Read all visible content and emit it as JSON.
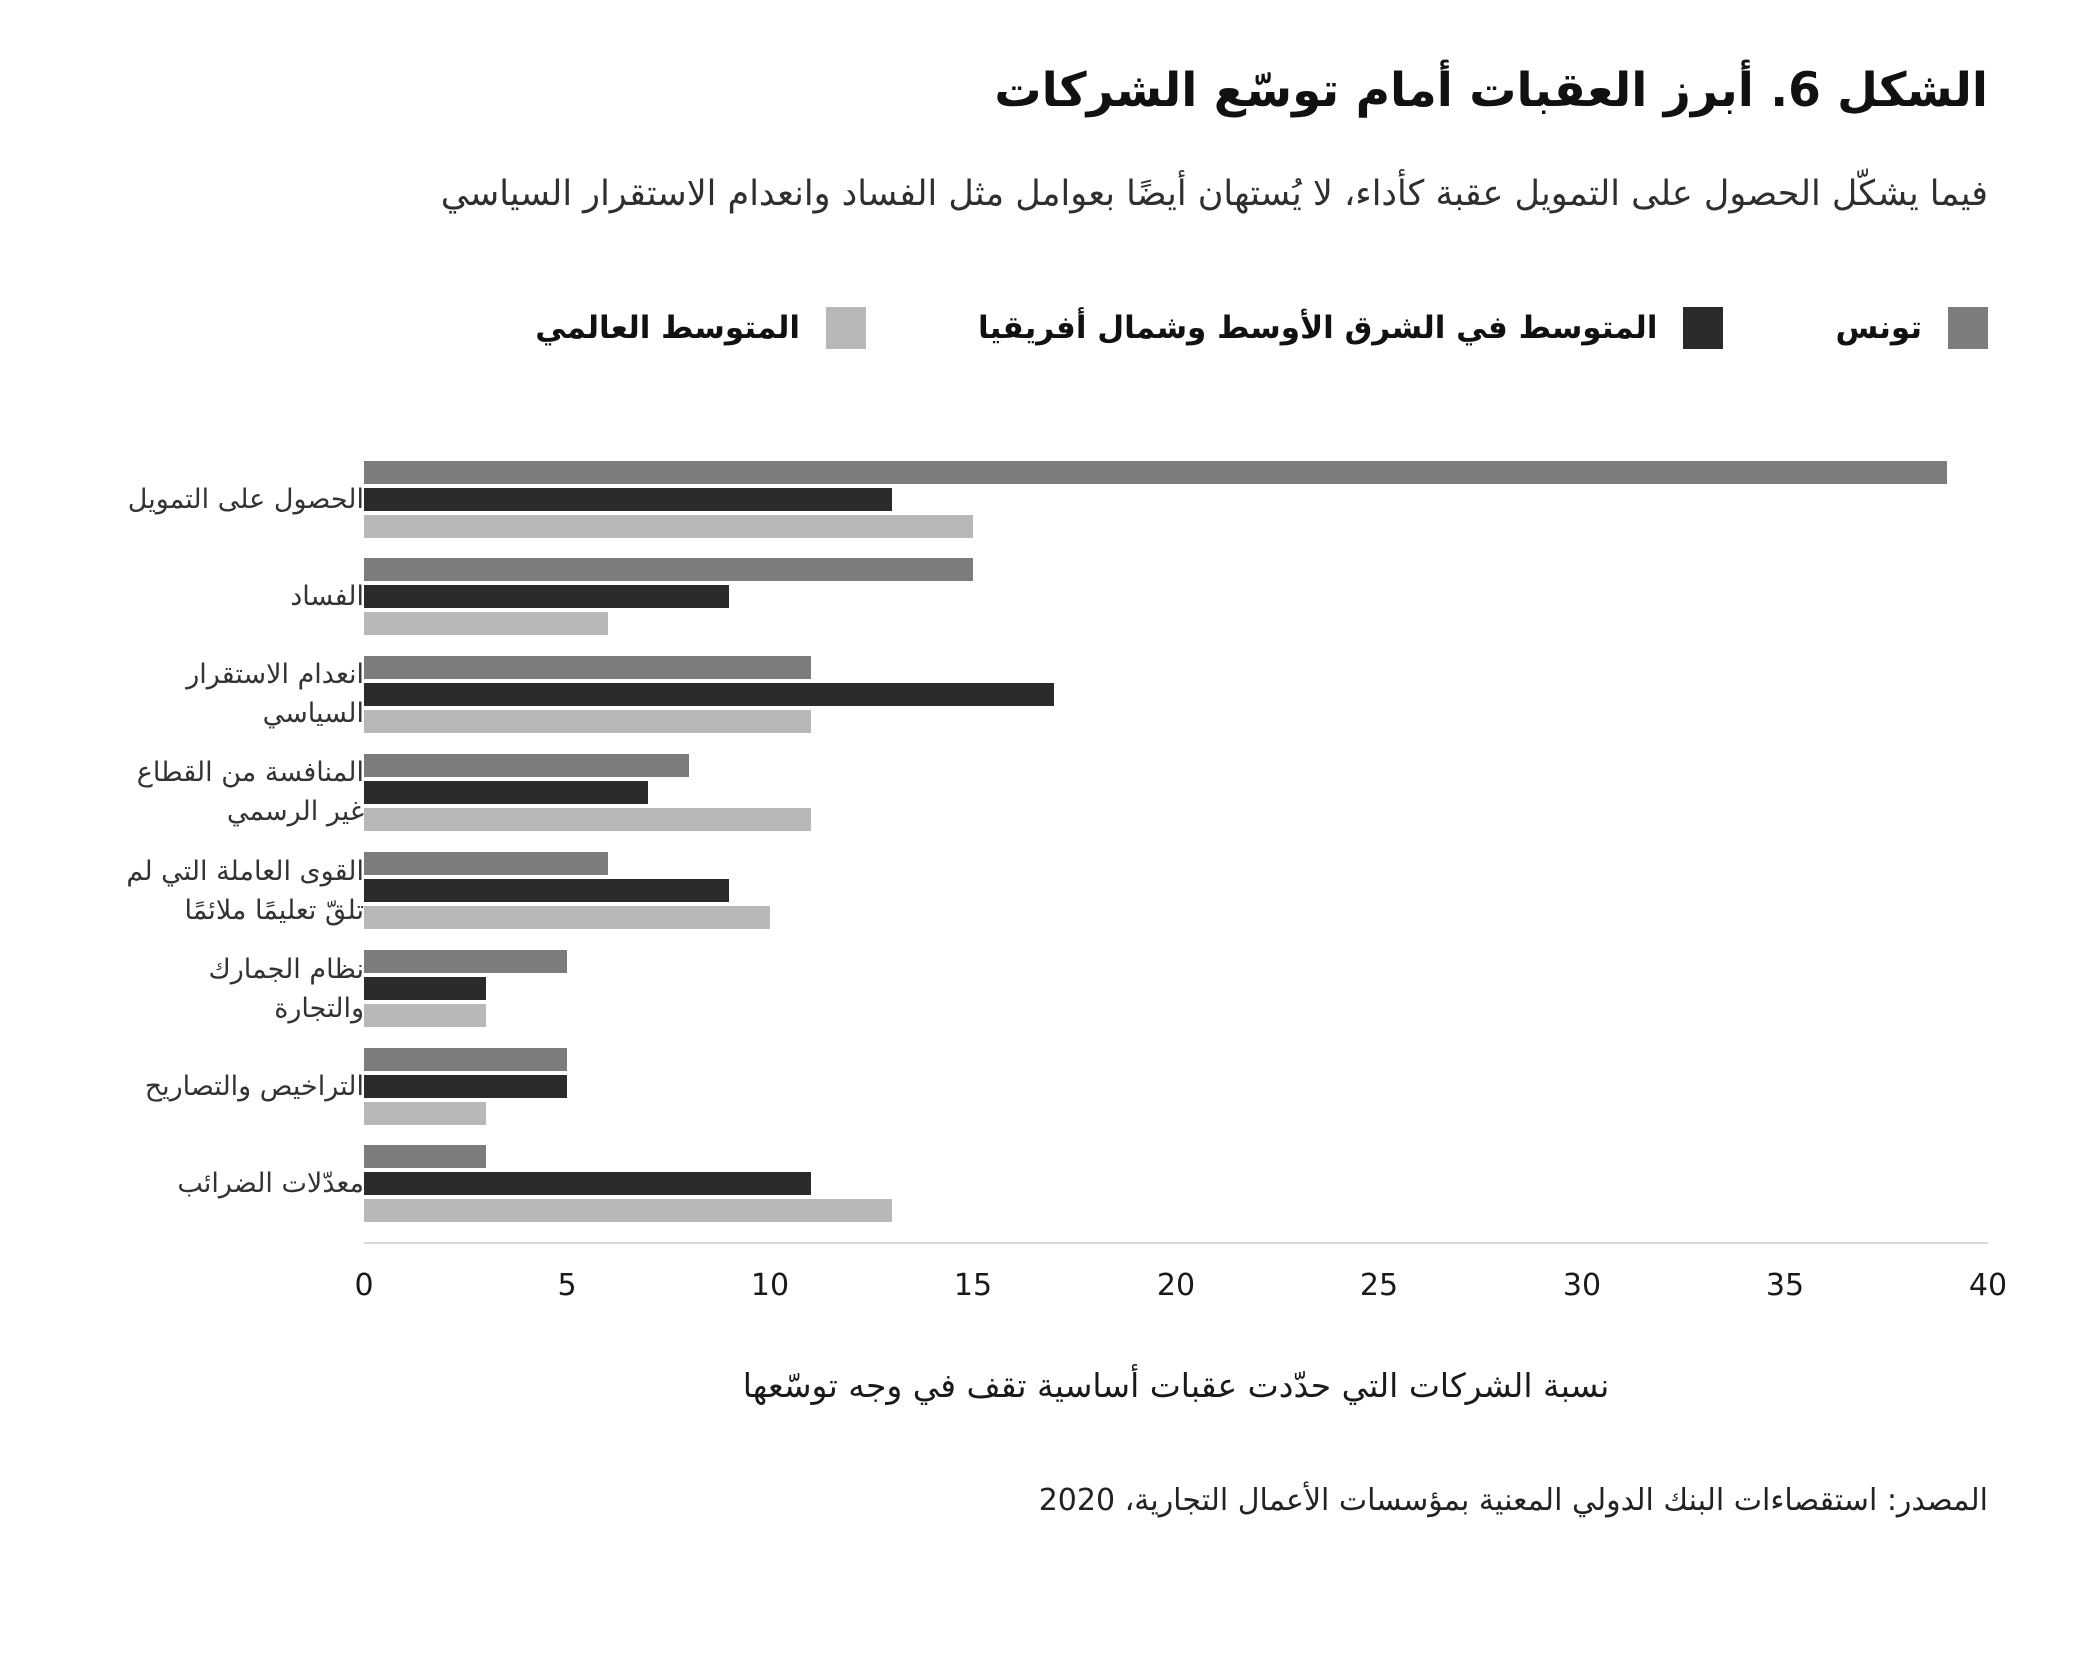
{
  "title": "الشكل 6. أبرز العقبات أمام توسّع الشركات",
  "subtitle": "فيما يشكّل الحصول على التمويل عقبة كأداء، لا يُستهان أيضًا بعوامل مثل الفساد وانعدام الاستقرار السياسي",
  "legend": [
    {
      "label": "تونس",
      "color": "#7c7c7c"
    },
    {
      "label": "المتوسط في الشرق الأوسط وشمال أفريقيا",
      "color": "#2b2b2b"
    },
    {
      "label": "المتوسط العالمي",
      "color": "#b8b8b8"
    }
  ],
  "chart_data": {
    "type": "bar",
    "orientation": "horizontal",
    "title": "الشكل 6. أبرز العقبات أمام توسّع الشركات",
    "categories": [
      "الحصول على التمويل",
      "الفساد",
      "انعدام الاستقرار السياسي",
      "المنافسة من القطاع غير الرسمي",
      "القوى العاملة التي لم تلقّ تعليمًا ملائمًا",
      "نظام الجمارك والتجارة",
      "التراخيص والتصاريح",
      "معدّلات الضرائب"
    ],
    "series": [
      {
        "name": "تونس",
        "color": "#7c7c7c",
        "values": [
          39,
          15,
          11,
          8,
          6,
          5,
          5,
          3
        ]
      },
      {
        "name": "المتوسط في الشرق الأوسط وشمال أفريقيا",
        "color": "#2b2b2b",
        "values": [
          13,
          9,
          17,
          7,
          9,
          3,
          5,
          11
        ]
      },
      {
        "name": "المتوسط العالمي",
        "color": "#b8b8b8",
        "values": [
          15,
          6,
          11,
          11,
          10,
          3,
          3,
          13
        ]
      }
    ],
    "xlabel": "نسبة الشركات التي حدّدت عقبات أساسية تقف في وجه توسّعها",
    "xlim": [
      0,
      40
    ],
    "xticks": [
      0,
      5,
      10,
      15,
      20,
      25,
      30,
      35,
      40
    ],
    "grid": false,
    "legend_position": "top",
    "axis_line_color": "#d8d8d8"
  },
  "source": "المصدر: استقصاءات البنك الدولي المعنية بمؤسسات الأعمال التجارية، 2020"
}
